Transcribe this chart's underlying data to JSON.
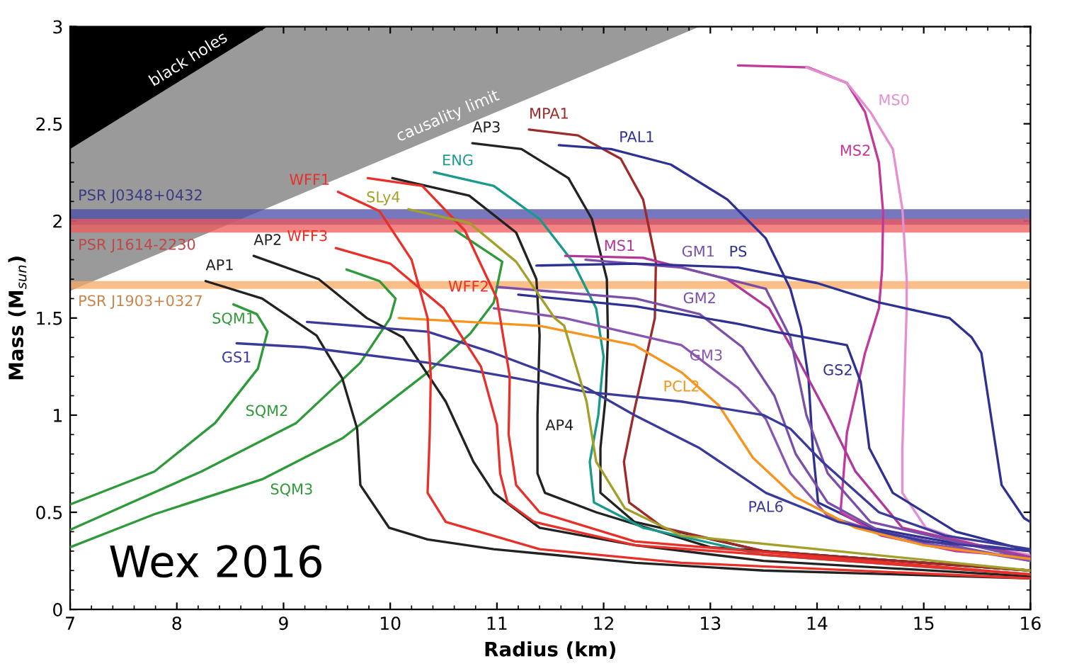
{
  "chart_data": {
    "type": "line",
    "xlabel": "Radius (km)",
    "ylabel": "Mass (M$_{sun}$)",
    "xlim": [
      7,
      16
    ],
    "ylim": [
      0,
      3
    ],
    "xticks": [
      7,
      8,
      9,
      10,
      11,
      12,
      13,
      14,
      15,
      16
    ],
    "yticks": [
      0,
      0.5,
      1,
      1.5,
      2,
      2.5,
      3
    ],
    "bands": [
      {
        "axis": "y",
        "from": 1.98,
        "to": 2.06,
        "label": "PSR J0348+0432",
        "color": "#4a4aa8"
      },
      {
        "axis": "y",
        "from": 1.94,
        "to": 2.01,
        "label": "PSR J1614-2230",
        "color": "#f05a5a"
      },
      {
        "axis": "y",
        "from": 1.65,
        "to": 1.69,
        "label": "PSR J1903+0327",
        "color": "#f8a860"
      }
    ],
    "annotations": [
      "Wex 2016"
    ],
    "series": [
      {
        "type": "area",
        "name": "causality limit",
        "color": "#9a9a9a",
        "x": [
          7,
          12.9
        ],
        "values": [
          1.64,
          3.0
        ]
      },
      {
        "type": "area",
        "name": "black holes",
        "color": "#000000",
        "x": [
          7,
          8.85
        ],
        "values": [
          2.37,
          3.0
        ]
      },
      {
        "name": "SQM1",
        "color": "#2e9a3a",
        "x": [
          8.53,
          8.75,
          8.85,
          8.76,
          8.36,
          7.79,
          7.0
        ],
        "values": [
          1.57,
          1.52,
          1.43,
          1.24,
          0.96,
          0.71,
          0.54
        ]
      },
      {
        "name": "SQM2",
        "color": "#2e9a3a",
        "x": [
          9.59,
          9.9,
          10.05,
          10.0,
          9.72,
          9.12,
          8.23,
          7.0
        ],
        "values": [
          1.75,
          1.69,
          1.6,
          1.5,
          1.27,
          0.96,
          0.71,
          0.41
        ]
      },
      {
        "name": "SQM3",
        "color": "#2e9a3a",
        "x": [
          10.61,
          11.05,
          10.97,
          10.75,
          10.35,
          9.55,
          8.8,
          7.79,
          7.0
        ],
        "values": [
          1.95,
          1.79,
          1.58,
          1.42,
          1.22,
          0.88,
          0.67,
          0.49,
          0.32
        ]
      },
      {
        "name": "AP1",
        "color": "#222222",
        "x": [
          8.27,
          8.8,
          9.31,
          9.55,
          9.69,
          9.72,
          9.99,
          10.35,
          10.97,
          12.3,
          13.5,
          16
        ],
        "values": [
          1.69,
          1.6,
          1.41,
          1.19,
          0.93,
          0.64,
          0.42,
          0.36,
          0.31,
          0.24,
          0.2,
          0.16
        ]
      },
      {
        "name": "AP2",
        "color": "#222222",
        "x": [
          8.72,
          9.33,
          9.78,
          10.12,
          10.52,
          10.78,
          10.97,
          11.4,
          12.3,
          13.5,
          16
        ],
        "values": [
          1.82,
          1.7,
          1.5,
          1.4,
          1.07,
          0.76,
          0.6,
          0.42,
          0.33,
          0.25,
          0.17
        ]
      },
      {
        "name": "AP4",
        "color": "#222222",
        "x": [
          10.02,
          10.74,
          11.18,
          11.37,
          11.4,
          11.38,
          11.38,
          11.45,
          11.93,
          13,
          16
        ],
        "values": [
          2.22,
          2.13,
          1.94,
          1.7,
          1.41,
          1.0,
          0.7,
          0.6,
          0.5,
          0.32,
          0.2
        ]
      },
      {
        "name": "AP3",
        "color": "#222222",
        "x": [
          10.77,
          11.23,
          11.67,
          11.89,
          12.03,
          12.04,
          12.02,
          11.97,
          11.97,
          12.29,
          13.5,
          16
        ],
        "values": [
          2.4,
          2.37,
          2.22,
          2.01,
          1.7,
          1.41,
          1.1,
          0.83,
          0.6,
          0.45,
          0.3,
          0.2
        ]
      },
      {
        "name": "ENG",
        "color": "#1a9a8a",
        "x": [
          10.41,
          10.97,
          11.4,
          11.71,
          11.93,
          12.0,
          11.95,
          11.87,
          11.91,
          12.37,
          13.5,
          16
        ],
        "values": [
          2.25,
          2.18,
          2.01,
          1.79,
          1.55,
          1.3,
          1.0,
          0.76,
          0.55,
          0.42,
          0.28,
          0.18
        ]
      },
      {
        "name": "MPA1",
        "color": "#9e2a2a",
        "x": [
          11.3,
          11.76,
          12.16,
          12.37,
          12.49,
          12.48,
          12.29,
          12.19,
          12.24,
          12.56,
          13.5,
          16
        ],
        "values": [
          2.47,
          2.44,
          2.32,
          2.11,
          1.79,
          1.5,
          1.03,
          0.76,
          0.55,
          0.42,
          0.3,
          0.2
        ]
      },
      {
        "name": "PAL1",
        "color": "#2e3192",
        "x": [
          11.58,
          12.07,
          12.63,
          13.16,
          13.52,
          13.75,
          13.85,
          13.92,
          13.96,
          14.01,
          14.5,
          15.2,
          16
        ],
        "values": [
          2.39,
          2.37,
          2.29,
          2.11,
          1.91,
          1.65,
          1.45,
          1.19,
          0.83,
          0.55,
          0.42,
          0.35,
          0.3
        ]
      },
      {
        "name": "MS2",
        "color": "#c1399b",
        "x": [
          13.26,
          13.92,
          14.28,
          14.45,
          14.58,
          14.62,
          14.61,
          14.58,
          14.45,
          14.28,
          14.22,
          14.6,
          15.3,
          16
        ],
        "values": [
          2.8,
          2.79,
          2.71,
          2.56,
          2.3,
          2.04,
          1.75,
          1.55,
          1.32,
          0.91,
          0.5,
          0.38,
          0.3,
          0.27
        ]
      },
      {
        "name": "MS0",
        "color": "#e58fd0",
        "x": [
          13.9,
          14.28,
          14.5,
          14.71,
          14.8,
          14.84,
          14.84,
          14.8,
          14.8,
          15.02,
          15.5,
          16
        ],
        "values": [
          2.79,
          2.71,
          2.56,
          2.37,
          2.06,
          1.7,
          1.55,
          0.83,
          0.6,
          0.42,
          0.33,
          0.28
        ]
      },
      {
        "name": "MS1",
        "color": "#b0389a",
        "x": [
          11.64,
          12.37,
          13.16,
          13.55,
          13.79,
          14.1,
          14.36,
          14.8,
          16
        ],
        "values": [
          1.82,
          1.81,
          1.7,
          1.55,
          1.32,
          1.0,
          0.71,
          0.42,
          0.27
        ]
      },
      {
        "name": "GM1",
        "color": "#7b4fa8",
        "x": [
          11.83,
          12.73,
          13.52,
          13.75,
          13.9,
          14.1,
          14.5,
          16
        ],
        "values": [
          1.8,
          1.76,
          1.65,
          1.4,
          1.0,
          0.7,
          0.45,
          0.26
        ]
      },
      {
        "name": "GM2",
        "color": "#7b4fa8",
        "x": [
          11.0,
          12.3,
          12.9,
          13.3,
          13.6,
          13.8,
          14.1,
          14.6,
          16
        ],
        "values": [
          1.66,
          1.6,
          1.52,
          1.35,
          1.1,
          0.8,
          0.55,
          0.4,
          0.25
        ]
      },
      {
        "name": "GM3",
        "color": "#8a55b0",
        "x": [
          10.97,
          11.63,
          12.73,
          13.26,
          13.52,
          13.75,
          14.1,
          14.8,
          16
        ],
        "values": [
          1.55,
          1.5,
          1.36,
          1.14,
          0.98,
          0.7,
          0.48,
          0.36,
          0.25
        ]
      },
      {
        "name": "GS2",
        "color": "#2e3192",
        "x": [
          11.2,
          12.3,
          13.26,
          13.6,
          14.28,
          14.41,
          14.49,
          14.71,
          15.3,
          16
        ],
        "values": [
          1.62,
          1.56,
          1.47,
          1.43,
          1.36,
          1.17,
          0.83,
          0.6,
          0.4,
          0.3
        ]
      },
      {
        "name": "PS",
        "color": "#2e3192",
        "x": [
          11.37,
          12.3,
          13.26,
          14.0,
          14.58,
          15.24,
          15.45,
          15.54,
          15.64,
          15.73,
          15.94,
          16
        ],
        "values": [
          1.77,
          1.78,
          1.76,
          1.68,
          1.58,
          1.5,
          1.4,
          1.32,
          0.96,
          0.64,
          0.47,
          0.45
        ]
      },
      {
        "name": "PCL2",
        "color": "#f7941d",
        "x": [
          10.08,
          11.4,
          12.29,
          12.73,
          13.08,
          13.4,
          13.79,
          14.36,
          15,
          16
        ],
        "values": [
          1.5,
          1.46,
          1.36,
          1.22,
          1.05,
          0.78,
          0.58,
          0.42,
          0.33,
          0.26
        ]
      },
      {
        "name": "GS1",
        "color": "#3a3a9a",
        "x": [
          8.56,
          9.2,
          10.35,
          11.18,
          11.84,
          12.73,
          13.5,
          13.75,
          14.05,
          14.58,
          15.2,
          16
        ],
        "values": [
          1.37,
          1.35,
          1.27,
          1.19,
          1.12,
          1.07,
          1.0,
          0.93,
          0.76,
          0.5,
          0.38,
          0.31
        ]
      },
      {
        "name": "PAL6",
        "color": "#3a3a9a",
        "x": [
          9.22,
          10.35,
          10.97,
          11.84,
          12.29,
          12.9,
          13.52,
          14.2,
          15,
          16
        ],
        "values": [
          1.48,
          1.43,
          1.32,
          1.14,
          1.0,
          0.83,
          0.6,
          0.45,
          0.35,
          0.3
        ]
      },
      {
        "name": "WFF1",
        "color": "#e8302a",
        "x": [
          9.51,
          9.9,
          10.2,
          10.35,
          10.38,
          10.37,
          10.35,
          10.52,
          11.4,
          12.73,
          16
        ],
        "values": [
          2.15,
          2.05,
          1.8,
          1.5,
          1.2,
          0.9,
          0.6,
          0.45,
          0.31,
          0.24,
          0.16
        ]
      },
      {
        "name": "WFF2",
        "color": "#e8302a",
        "x": [
          9.79,
          10.3,
          10.7,
          11.0,
          11.12,
          11.11,
          11.18,
          11.4,
          12.29,
          16
        ],
        "values": [
          2.22,
          2.18,
          1.95,
          1.6,
          1.2,
          0.9,
          0.64,
          0.5,
          0.35,
          0.18
        ]
      },
      {
        "name": "WFF3",
        "color": "#e8302a",
        "x": [
          9.49,
          10.0,
          10.5,
          10.85,
          11.0,
          11.03,
          11.1,
          11.35,
          12.3,
          16
        ],
        "values": [
          1.86,
          1.78,
          1.55,
          1.25,
          0.95,
          0.7,
          0.55,
          0.45,
          0.33,
          0.18
        ]
      },
      {
        "name": "SLy4",
        "color": "#a3a02a",
        "x": [
          10.17,
          10.74,
          11.18,
          11.54,
          11.63,
          11.84,
          11.93,
          12.2,
          12.73,
          16
        ],
        "values": [
          2.06,
          1.99,
          1.79,
          1.5,
          1.46,
          1.07,
          0.76,
          0.52,
          0.38,
          0.2
        ]
      }
    ]
  }
}
